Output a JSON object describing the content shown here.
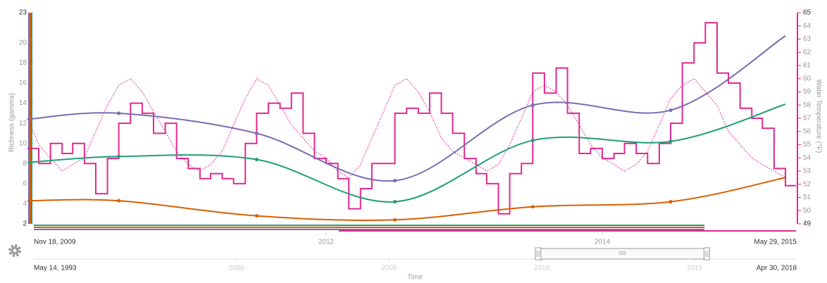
{
  "chart_data": {
    "type": "line",
    "xlabel": "Time",
    "ylabel": "Richness (gamma)",
    "y2label": "Water Temperature (°F)",
    "xlim": [
      "Nov 18, 2009",
      "May 29, 2015"
    ],
    "xticks": [
      2012,
      2014
    ],
    "ylim": [
      2,
      23
    ],
    "yticks": [
      2,
      4,
      6,
      8,
      10,
      12,
      14,
      16,
      18,
      20,
      23
    ],
    "y2lim": [
      49,
      65
    ],
    "y2ticks": [
      49,
      50,
      51,
      52,
      53,
      54,
      55,
      56,
      57,
      58,
      59,
      60,
      61,
      62,
      63,
      64,
      65
    ],
    "navigator": {
      "xlim": [
        "May 14, 1993",
        "Apr 30, 2018"
      ],
      "xticks": [
        2000,
        2005,
        2010,
        2015
      ]
    },
    "series": [
      {
        "style": "step",
        "color": "#e0298f",
        "x": [
          "2009-11",
          "2009-12",
          "2010-01",
          "2010-02",
          "2010-03",
          "2010-04",
          "2010-05",
          "2010-06",
          "2010-07",
          "2010-08",
          "2010-09",
          "2010-10",
          "2010-11",
          "2010-12",
          "2011-01",
          "2011-02",
          "2011-03",
          "2011-04",
          "2011-05",
          "2011-06",
          "2011-07",
          "2011-08",
          "2011-09",
          "2011-10",
          "2011-11",
          "2011-12",
          "2012-01",
          "2012-02",
          "2012-03",
          "2012-04",
          "2012-05",
          "2012-06",
          "2012-07",
          "2012-08",
          "2012-09",
          "2012-10",
          "2012-11",
          "2012-12",
          "2013-01",
          "2013-02",
          "2013-03",
          "2013-04",
          "2013-05",
          "2013-06",
          "2013-07",
          "2013-08",
          "2013-09",
          "2013-10",
          "2013-11",
          "2013-12",
          "2014-01",
          "2014-02",
          "2014-03",
          "2014-04",
          "2014-05",
          "2014-06",
          "2014-07",
          "2014-08",
          "2014-09",
          "2014-10",
          "2014-11",
          "2014-12",
          "2015-01",
          "2015-02",
          "2015-03",
          "2015-04",
          "2015-05"
        ],
        "values": [
          9.5,
          8,
          10,
          9,
          10,
          8,
          5,
          8.5,
          12,
          14,
          13,
          11,
          12,
          8.5,
          7.5,
          6.5,
          7,
          6.5,
          6,
          10,
          13,
          14,
          13.5,
          15,
          11,
          8.5,
          8,
          6.5,
          3.5,
          5.5,
          8,
          8,
          13,
          13.5,
          13,
          15,
          13,
          11,
          8.5,
          7,
          6,
          3,
          7,
          8,
          17,
          15,
          17.5,
          13,
          9,
          9.5,
          8.5,
          9,
          10,
          9,
          8,
          10,
          12,
          18,
          20,
          22,
          17,
          16,
          13.5,
          12.5,
          11.5,
          7.5,
          5.8
        ]
      },
      {
        "style": "dotted",
        "axis": "y2",
        "color": "#e0298f",
        "x": [
          "2009-11",
          "2009-12",
          "2010-01",
          "2010-02",
          "2010-03",
          "2010-04",
          "2010-05",
          "2010-06",
          "2010-07",
          "2010-08",
          "2010-09",
          "2010-10",
          "2010-11",
          "2010-12",
          "2011-01",
          "2011-02",
          "2011-03",
          "2011-04",
          "2011-05",
          "2011-06",
          "2011-07",
          "2011-08",
          "2011-09",
          "2011-10",
          "2011-11",
          "2011-12",
          "2012-01",
          "2012-02",
          "2012-03",
          "2012-04",
          "2012-05",
          "2012-06",
          "2012-07",
          "2012-08",
          "2012-09",
          "2012-10",
          "2012-11",
          "2012-12",
          "2013-01",
          "2013-02",
          "2013-03",
          "2013-04",
          "2013-05",
          "2013-06",
          "2013-07",
          "2013-08",
          "2013-09",
          "2013-10",
          "2013-11",
          "2013-12",
          "2014-01",
          "2014-02",
          "2014-03",
          "2014-04",
          "2014-05",
          "2014-06",
          "2014-07",
          "2014-08",
          "2014-09",
          "2014-10",
          "2014-11",
          "2014-12",
          "2015-01",
          "2015-02",
          "2015-03",
          "2015-04",
          "2015-05"
        ],
        "values": [
          57,
          55,
          54,
          53,
          53.5,
          54,
          56,
          58,
          59.5,
          60,
          59,
          57.5,
          56,
          54.5,
          53.5,
          53,
          53.5,
          54.5,
          56.5,
          58.5,
          60,
          59.5,
          58,
          56.5,
          55.5,
          54.5,
          54,
          53,
          52.5,
          53.5,
          55.5,
          57.5,
          59.5,
          60,
          59,
          57.5,
          55.5,
          54.5,
          54,
          53.5,
          53,
          53.5,
          55,
          57,
          59,
          59.5,
          59,
          58,
          56.5,
          55,
          54,
          53.5,
          53,
          53.5,
          54.5,
          56.5,
          58.5,
          59.5,
          60,
          59,
          58,
          56,
          55,
          54,
          53.5,
          53,
          52.5
        ]
      },
      {
        "style": "smooth",
        "color": "#7b6bb0",
        "x": [
          "2009-11",
          "2010-07",
          "2011-07",
          "2012-07",
          "2013-07",
          "2014-07",
          "2015-05"
        ],
        "values": [
          12.4,
          13,
          11,
          6.3,
          13.8,
          13.3,
          20.7
        ]
      },
      {
        "style": "smooth",
        "color": "#1f9e77",
        "x": [
          "2009-11",
          "2010-07",
          "2011-07",
          "2012-07",
          "2013-07",
          "2014-07",
          "2015-05"
        ],
        "values": [
          8.1,
          8.7,
          8.4,
          4.2,
          10.3,
          10.2,
          13.9
        ]
      },
      {
        "style": "smooth",
        "color": "#d95f02",
        "x": [
          "2009-11",
          "2010-07",
          "2011-07",
          "2012-07",
          "2013-07",
          "2014-07",
          "2015-05"
        ],
        "values": [
          4.3,
          4.3,
          2.8,
          2.4,
          3.7,
          4.2,
          6.6
        ]
      }
    ]
  }
}
